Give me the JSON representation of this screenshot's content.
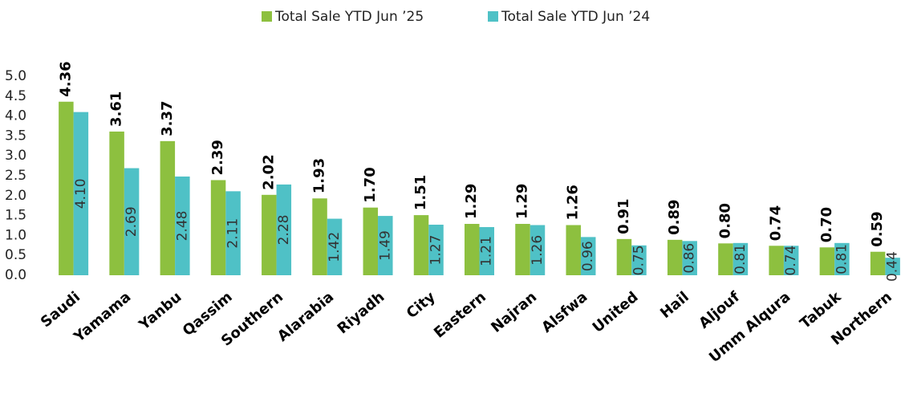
{
  "chart_data": {
    "type": "bar",
    "categories": [
      "Saudi",
      "Yamama",
      "Yanbu",
      "Qassim",
      "Southern",
      "Alarabia",
      "Riyadh",
      "City",
      "Eastern",
      "Najran",
      "Alsfwa",
      "United",
      "Hail",
      "Aljouf",
      "Umm Alqura",
      "Tabuk",
      "Northern"
    ],
    "series": [
      {
        "name": "Total Sale YTD Jun ’25",
        "color": "#8dc03f",
        "values": [
          4.36,
          3.61,
          3.37,
          2.39,
          2.02,
          1.93,
          1.7,
          1.51,
          1.29,
          1.29,
          1.26,
          0.91,
          0.89,
          0.8,
          0.74,
          0.7,
          0.59
        ],
        "value_labels": [
          "4.36",
          "3.61",
          "3.37",
          "2.39",
          "2.02",
          "1.93",
          "1.70",
          "1.51",
          "1.29",
          "1.29",
          "1.26",
          "0.91",
          "0.89",
          "0.80",
          "0.74",
          "0.70",
          "0.59"
        ]
      },
      {
        "name": "Total Sale YTD Jun ’24",
        "color": "#4fc1c6",
        "values": [
          4.1,
          2.69,
          2.48,
          2.11,
          2.28,
          1.42,
          1.49,
          1.27,
          1.21,
          1.26,
          0.96,
          0.75,
          0.86,
          0.81,
          0.74,
          0.81,
          0.44
        ],
        "value_labels": [
          "4.10",
          "2.69",
          "2.48",
          "2.11",
          "2.28",
          "1.42",
          "1.49",
          "1.27",
          "1.21",
          "1.26",
          "0.96",
          "0.75",
          "0.86",
          "0.81",
          "0.74",
          "0.81",
          "0.44"
        ]
      }
    ],
    "ylim": [
      0,
      5
    ],
    "yticks": [
      {
        "value": 0,
        "label": "0.0"
      },
      {
        "value": 0.5,
        "label": "0.5"
      },
      {
        "value": 1,
        "label": "1.0"
      },
      {
        "value": 1.5,
        "label": "1.5"
      },
      {
        "value": 2,
        "label": "2.0"
      },
      {
        "value": 2.5,
        "label": "2.5"
      },
      {
        "value": 3,
        "label": "3.0"
      },
      {
        "value": 3.5,
        "label": "3.5"
      },
      {
        "value": 4,
        "label": "4.0"
      },
      {
        "value": 4.5,
        "label": "4.5"
      },
      {
        "value": 5,
        "label": "5.0"
      }
    ],
    "legend": "top",
    "grid": false
  }
}
